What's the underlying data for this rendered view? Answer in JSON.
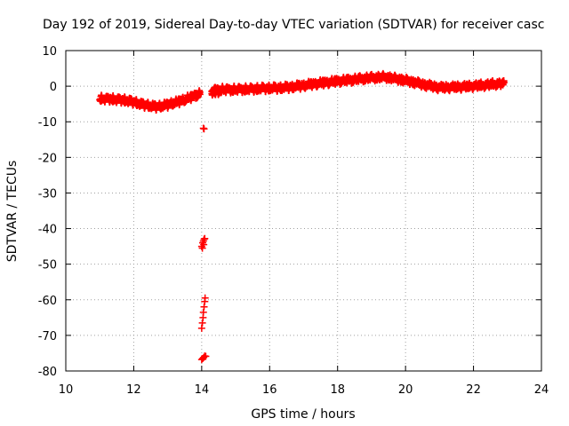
{
  "chart_data": {
    "type": "scatter",
    "title": "Day 192 of 2019, Sidereal Day-to-day VTEC variation (SDTVAR) for receiver casc",
    "xlabel": "GPS time / hours",
    "ylabel": "SDTVAR / TECUs",
    "xlim": [
      10,
      24
    ],
    "ylim": [
      -80,
      10
    ],
    "x_ticks": [
      "10",
      "12",
      "14",
      "16",
      "18",
      "20",
      "22",
      "24"
    ],
    "y_ticks": [
      "10",
      "0",
      "-10",
      "-20",
      "-30",
      "-40",
      "-50",
      "-60",
      "-70",
      "-80"
    ],
    "grid": true,
    "marker": "+",
    "colors": {
      "series": "#ff0000",
      "grid": "#a0a0a0",
      "axis": "#000000"
    },
    "series": [
      {
        "name": "SDTVAR",
        "band_halfwidth": 1.0,
        "trend_x": [
          11.0,
          11.3,
          11.6,
          11.9,
          12.2,
          12.5,
          12.7,
          13.0,
          13.3,
          13.6,
          13.85,
          14.0,
          14.3,
          14.6,
          15.0,
          15.4,
          15.8,
          16.2,
          16.6,
          17.0,
          17.4,
          17.8,
          18.2,
          18.6,
          19.0,
          19.4,
          19.8,
          20.2,
          20.6,
          21.0,
          21.4,
          21.8,
          22.2,
          22.6,
          22.9
        ],
        "trend_y": [
          -3.5,
          -3.6,
          -3.8,
          -4.2,
          -5.0,
          -5.6,
          -5.8,
          -5.2,
          -4.4,
          -3.4,
          -2.5,
          -2.0,
          -1.2,
          -1.0,
          -0.9,
          -0.8,
          -0.6,
          -0.5,
          -0.3,
          0.2,
          0.7,
          1.2,
          1.6,
          2.0,
          2.4,
          2.6,
          2.0,
          1.2,
          0.3,
          -0.4,
          -0.3,
          -0.1,
          0.2,
          0.6,
          0.8
        ],
        "outliers": [
          {
            "x": 14.05,
            "y": -11.8
          },
          {
            "x": 14.07,
            "y": -12.0
          },
          {
            "x": 14.0,
            "y": -45.0
          },
          {
            "x": 14.03,
            "y": -44.0
          },
          {
            "x": 14.05,
            "y": -43.5
          },
          {
            "x": 14.07,
            "y": -43.0
          },
          {
            "x": 14.09,
            "y": -42.8
          },
          {
            "x": 14.02,
            "y": -45.5
          },
          {
            "x": 14.06,
            "y": -44.5
          },
          {
            "x": 14.0,
            "y": -68.0
          },
          {
            "x": 14.02,
            "y": -66.5
          },
          {
            "x": 14.04,
            "y": -65.0
          },
          {
            "x": 14.05,
            "y": -63.5
          },
          {
            "x": 14.07,
            "y": -62.0
          },
          {
            "x": 14.09,
            "y": -60.5
          },
          {
            "x": 14.1,
            "y": -59.5
          },
          {
            "x": 14.0,
            "y": -76.8
          },
          {
            "x": 14.03,
            "y": -76.5
          },
          {
            "x": 14.06,
            "y": -76.2
          },
          {
            "x": 14.09,
            "y": -75.8
          },
          {
            "x": 14.12,
            "y": -75.9
          }
        ]
      }
    ]
  }
}
